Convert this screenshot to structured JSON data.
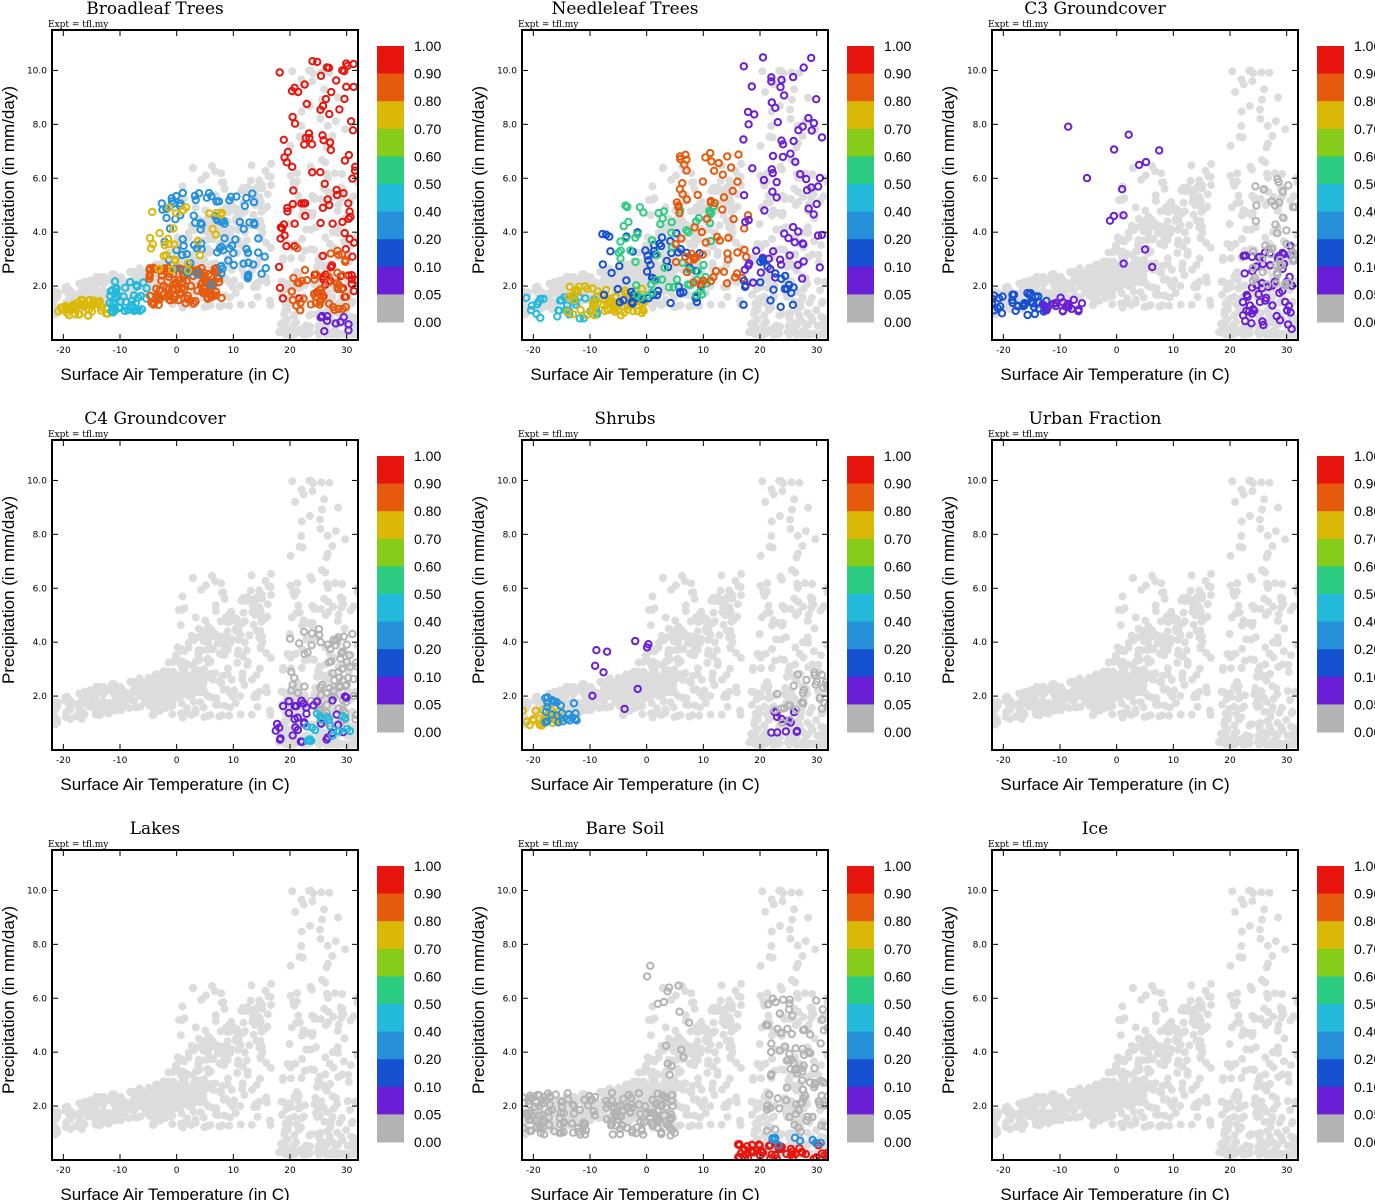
{
  "figure": {
    "expt_label": "Expt = tfl.my",
    "xlabel": "Surface Air Temperature (in C)",
    "ylabel": "Precipitation (in mm/day)",
    "x_ticks": [
      -20,
      -10,
      0,
      10,
      20,
      30
    ],
    "y_ticks": [
      "2.0",
      "4.0",
      "6.0",
      "8.0",
      "10.0"
    ]
  },
  "colorbar": {
    "labels": [
      "1.00",
      "0.90",
      "0.80",
      "0.70",
      "0.60",
      "0.50",
      "0.40",
      "0.20",
      "0.10",
      "0.05",
      "0.00"
    ],
    "colors": [
      "#e8150e",
      "#e55a0c",
      "#dbb808",
      "#86cc1a",
      "#2ccc82",
      "#22b9db",
      "#2690da",
      "#1651d1",
      "#6a1fd6",
      "#b3b3b3"
    ]
  },
  "chart_data": [
    {
      "type": "scatter",
      "title": "Broadleaf Trees",
      "xlabel": "Surface Air Temperature (in C)",
      "ylabel": "Precipitation (in mm/day)",
      "xlim": [
        -22,
        32
      ],
      "ylim": [
        0,
        11.5
      ],
      "background_color": "#dcdcdc",
      "clusters": [
        {
          "x": [
            -21,
            -12
          ],
          "y": [
            0.9,
            1.5
          ],
          "n": 45,
          "color": "#dbb808"
        },
        {
          "x": [
            -12,
            -5
          ],
          "y": [
            1.0,
            2.2
          ],
          "n": 45,
          "color": "#22b9db"
        },
        {
          "x": [
            -5,
            8
          ],
          "y": [
            1.3,
            2.7
          ],
          "n": 110,
          "color": "#e55a0c"
        },
        {
          "x": [
            -3,
            16
          ],
          "y": [
            2.0,
            5.5
          ],
          "n": 90,
          "color": "#2690da"
        },
        {
          "x": [
            -5,
            8
          ],
          "y": [
            2.5,
            5.0
          ],
          "n": 30,
          "color": "#dbb808"
        },
        {
          "x": [
            18,
            32
          ],
          "y": [
            1.5,
            10.5
          ],
          "n": 110,
          "color": "#e8150e"
        },
        {
          "x": [
            20,
            30
          ],
          "y": [
            1.0,
            3.5
          ],
          "n": 50,
          "color": "#e55a0c"
        },
        {
          "x": [
            25,
            31
          ],
          "y": [
            0.3,
            0.9
          ],
          "n": 10,
          "color": "#6a1fd6"
        }
      ]
    },
    {
      "type": "scatter",
      "title": "Needleleaf Trees",
      "xlabel": "Surface Air Temperature (in C)",
      "ylabel": "Precipitation (in mm/day)",
      "xlim": [
        -22,
        32
      ],
      "ylim": [
        0,
        11.5
      ],
      "background_color": "#dcdcdc",
      "clusters": [
        {
          "x": [
            -22,
            -8
          ],
          "y": [
            0.8,
            1.6
          ],
          "n": 35,
          "color": "#22b9db"
        },
        {
          "x": [
            -14,
            0
          ],
          "y": [
            0.9,
            2.0
          ],
          "n": 70,
          "color": "#dbb808"
        },
        {
          "x": [
            -8,
            10
          ],
          "y": [
            1.3,
            4.0
          ],
          "n": 60,
          "color": "#1651d1"
        },
        {
          "x": [
            -5,
            12
          ],
          "y": [
            1.5,
            5.0
          ],
          "n": 60,
          "color": "#2ccc82"
        },
        {
          "x": [
            5,
            18
          ],
          "y": [
            2.0,
            7.0
          ],
          "n": 70,
          "color": "#e55a0c"
        },
        {
          "x": [
            17,
            31
          ],
          "y": [
            2.0,
            10.5
          ],
          "n": 80,
          "color": "#6a1fd6"
        },
        {
          "x": [
            17,
            26
          ],
          "y": [
            1.0,
            3.0
          ],
          "n": 20,
          "color": "#1651d1"
        }
      ]
    },
    {
      "type": "scatter",
      "title": "C3 Groundcover",
      "xlabel": "Surface Air Temperature (in C)",
      "ylabel": "Precipitation (in mm/day)",
      "xlim": [
        -22,
        32
      ],
      "ylim": [
        0,
        11.5
      ],
      "background_color": "#dcdcdc",
      "clusters": [
        {
          "x": [
            -22,
            -12
          ],
          "y": [
            0.9,
            1.8
          ],
          "n": 40,
          "color": "#1651d1"
        },
        {
          "x": [
            -14,
            -6
          ],
          "y": [
            1.0,
            1.6
          ],
          "n": 20,
          "color": "#6a1fd6"
        },
        {
          "x": [
            -10,
            8
          ],
          "y": [
            2.5,
            8.0
          ],
          "n": 14,
          "color": "#6a1fd6"
        },
        {
          "x": [
            22,
            31
          ],
          "y": [
            0.4,
            3.5
          ],
          "n": 60,
          "color": "#6a1fd6"
        },
        {
          "x": [
            24,
            32
          ],
          "y": [
            2.0,
            6.0
          ],
          "n": 45,
          "color": "#b3b3b3"
        }
      ]
    },
    {
      "type": "scatter",
      "title": "C4 Groundcover",
      "xlabel": "Surface Air Temperature (in C)",
      "ylabel": "Precipitation (in mm/day)",
      "xlim": [
        -22,
        32
      ],
      "ylim": [
        0,
        11.5
      ],
      "background_color": "#dcdcdc",
      "clusters": [
        {
          "x": [
            20,
            32
          ],
          "y": [
            1.0,
            4.5
          ],
          "n": 80,
          "color": "#b3b3b3"
        },
        {
          "x": [
            17,
            31
          ],
          "y": [
            0.3,
            2.0
          ],
          "n": 35,
          "color": "#6a1fd6"
        },
        {
          "x": [
            22,
            31
          ],
          "y": [
            0.3,
            1.5
          ],
          "n": 20,
          "color": "#22b9db"
        }
      ]
    },
    {
      "type": "scatter",
      "title": "Shrubs",
      "xlabel": "Surface Air Temperature (in C)",
      "ylabel": "Precipitation (in mm/day)",
      "xlim": [
        -22,
        32
      ],
      "ylim": [
        0,
        11.5
      ],
      "background_color": "#dcdcdc",
      "clusters": [
        {
          "x": [
            -22,
            -15
          ],
          "y": [
            0.9,
            1.5
          ],
          "n": 25,
          "color": "#dbb808"
        },
        {
          "x": [
            -18,
            -12
          ],
          "y": [
            1.0,
            2.0
          ],
          "n": 25,
          "color": "#2690da"
        },
        {
          "x": [
            -10,
            2
          ],
          "y": [
            1.5,
            4.5
          ],
          "n": 10,
          "color": "#6a1fd6"
        },
        {
          "x": [
            20,
            28
          ],
          "y": [
            0.5,
            1.5
          ],
          "n": 12,
          "color": "#6a1fd6"
        },
        {
          "x": [
            22,
            32
          ],
          "y": [
            1.0,
            3.0
          ],
          "n": 30,
          "color": "#b3b3b3"
        }
      ]
    },
    {
      "type": "scatter",
      "title": "Urban Fraction",
      "xlabel": "Surface Air Temperature (in C)",
      "ylabel": "Precipitation (in mm/day)",
      "xlim": [
        -22,
        32
      ],
      "ylim": [
        0,
        11.5
      ],
      "background_color": "#dcdcdc",
      "clusters": []
    },
    {
      "type": "scatter",
      "title": "Lakes",
      "xlabel": "Surface Air Temperature (in C)",
      "ylabel": "Precipitation (in mm/day)",
      "xlim": [
        -22,
        32
      ],
      "ylim": [
        0,
        11.5
      ],
      "background_color": "#dcdcdc",
      "clusters": []
    },
    {
      "type": "scatter",
      "title": "Bare Soil",
      "xlabel": "Surface Air Temperature (in C)",
      "ylabel": "Precipitation (in mm/day)",
      "xlim": [
        -22,
        32
      ],
      "ylim": [
        0,
        11.5
      ],
      "background_color": "#dcdcdc",
      "clusters": [
        {
          "x": [
            -22,
            5
          ],
          "y": [
            0.9,
            2.5
          ],
          "n": 170,
          "color": "#b3b3b3"
        },
        {
          "x": [
            0,
            8
          ],
          "y": [
            3.0,
            8.0
          ],
          "n": 15,
          "color": "#b3b3b3"
        },
        {
          "x": [
            21,
            32
          ],
          "y": [
            1.0,
            6.0
          ],
          "n": 90,
          "color": "#b3b3b3"
        },
        {
          "x": [
            16,
            32
          ],
          "y": [
            0.0,
            0.6
          ],
          "n": 50,
          "color": "#e8150e"
        },
        {
          "x": [
            22,
            31
          ],
          "y": [
            0.5,
            1.0
          ],
          "n": 10,
          "color": "#2690da"
        }
      ]
    },
    {
      "type": "scatter",
      "title": "Ice",
      "xlabel": "Surface Air Temperature (in C)",
      "ylabel": "Precipitation (in mm/day)",
      "xlim": [
        -22,
        32
      ],
      "ylim": [
        0,
        11.5
      ],
      "background_color": "#dcdcdc",
      "clusters": []
    }
  ]
}
